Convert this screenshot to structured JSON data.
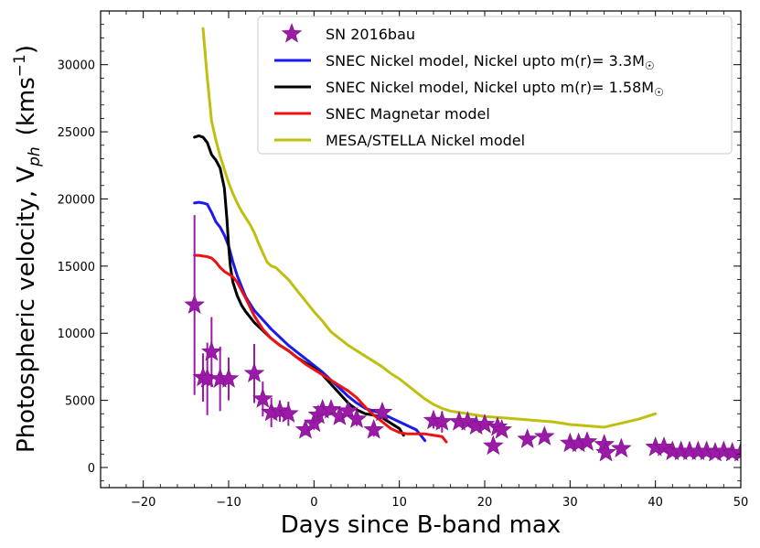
{
  "chart_data": {
    "type": "line",
    "xlabel": "Days since B-band max",
    "ylabel_main": "Photospheric velocity, V",
    "ylabel_sub": "ph",
    "ylabel_units": "(kms",
    "ylabel_units_sup": "−1",
    "ylabel_units_close": ")",
    "xlim": [
      -25,
      50
    ],
    "ylim": [
      -1500,
      34000
    ],
    "xticks": [
      -20,
      -10,
      0,
      10,
      20,
      30,
      40,
      50
    ],
    "xtick_labels": [
      "−20",
      "−10",
      "0",
      "10",
      "20",
      "30",
      "40",
      "50"
    ],
    "yticks": [
      0,
      5000,
      10000,
      15000,
      20000,
      25000,
      30000
    ],
    "ytick_labels": [
      "0",
      "5000",
      "10000",
      "15000",
      "20000",
      "25000",
      "30000"
    ],
    "legend_position": "top-right",
    "legend": [
      {
        "label": "SN 2016bau",
        "kind": "star",
        "color": "#9b1aa8"
      },
      {
        "label": "SNEC Nickel model, Nickel upto m(r)= 3.3M",
        "sub": "☉",
        "kind": "line",
        "color": "#1a1aee"
      },
      {
        "label": "SNEC Nickel model, Nickel upto m(r)= 1.58M",
        "sub": "☉",
        "kind": "line",
        "color": "#000000"
      },
      {
        "label": "SNEC Magnetar model",
        "kind": "line",
        "color": "#ee1111"
      },
      {
        "label": "MESA/STELLA Nickel model",
        "kind": "line",
        "color": "#bfbf10"
      }
    ],
    "series": [
      {
        "name": "SN 2016bau",
        "kind": "scatter",
        "color": "#9b1aa8",
        "points": [
          [
            -14.0,
            12100,
            6700
          ],
          [
            -13.0,
            6700,
            1800
          ],
          [
            -12.5,
            6600,
            2700
          ],
          [
            -12.0,
            8600,
            2600
          ],
          [
            -11.0,
            6600,
            2400
          ],
          [
            -10.0,
            6600,
            1600
          ],
          [
            -7.0,
            7000,
            2200
          ],
          [
            -6.0,
            5100,
            1300
          ],
          [
            -5.0,
            4100,
            1100
          ],
          [
            -4.0,
            4200,
            800
          ],
          [
            -3.0,
            4000,
            900
          ],
          [
            -1.0,
            2800,
            400
          ],
          [
            0.0,
            3300,
            500
          ],
          [
            0.5,
            3900,
            500
          ],
          [
            1.0,
            4300,
            500
          ],
          [
            2.0,
            4300,
            400
          ],
          [
            3.0,
            3800,
            400
          ],
          [
            4.0,
            4200,
            400
          ],
          [
            5.0,
            3600,
            500
          ],
          [
            7.0,
            2800,
            500
          ],
          [
            8.0,
            4100,
            500
          ],
          [
            14.0,
            3500,
            600
          ],
          [
            15.0,
            3400,
            800
          ],
          [
            17.0,
            3400,
            300
          ],
          [
            18.0,
            3400,
            300
          ],
          [
            19.0,
            3100,
            300
          ],
          [
            20.0,
            3200,
            300
          ],
          [
            21.0,
            1600,
            300
          ],
          [
            21.5,
            3000,
            300
          ],
          [
            22.0,
            2800,
            300
          ],
          [
            25.0,
            2100,
            300
          ],
          [
            27.0,
            2300,
            300
          ],
          [
            30.0,
            1800,
            300
          ],
          [
            31.0,
            1800,
            300
          ],
          [
            32.0,
            1900,
            300
          ],
          [
            34.0,
            1700,
            300
          ],
          [
            34.2,
            1100,
            300
          ],
          [
            36.0,
            1400,
            300
          ],
          [
            40.0,
            1500,
            300
          ],
          [
            41.0,
            1500,
            300
          ],
          [
            42.0,
            1200,
            300
          ],
          [
            43.0,
            1200,
            300
          ],
          [
            44.0,
            1200,
            300
          ],
          [
            45.0,
            1200,
            300
          ],
          [
            46.0,
            1200,
            300
          ],
          [
            47.0,
            1100,
            300
          ],
          [
            48.0,
            1200,
            300
          ],
          [
            49.0,
            1100,
            300
          ],
          [
            50.0,
            1100,
            300
          ]
        ]
      },
      {
        "name": "SNEC Nickel model, Nickel upto m(r)= 3.3M☉",
        "kind": "line",
        "color": "#1a1aee",
        "x": [
          -14,
          -13.5,
          -13,
          -12.5,
          -12,
          -11.5,
          -11,
          -10.5,
          -10,
          -9.5,
          -9,
          -8.5,
          -8,
          -7,
          -6,
          -5,
          -4,
          -3,
          -2,
          -1,
          0,
          1,
          2,
          3,
          4,
          5,
          6,
          7,
          8,
          9,
          10,
          11,
          12,
          13
        ],
        "y": [
          19700,
          19750,
          19700,
          19600,
          19000,
          18300,
          17900,
          17300,
          16500,
          15300,
          14300,
          13500,
          12700,
          11700,
          11000,
          10300,
          9700,
          9100,
          8600,
          8100,
          7600,
          7100,
          6500,
          5900,
          5300,
          4800,
          4400,
          4200,
          4000,
          3700,
          3400,
          3100,
          2800,
          2000
        ]
      },
      {
        "name": "SNEC Nickel model, Nickel upto m(r)= 1.58M☉",
        "kind": "line",
        "color": "#000000",
        "x": [
          -14,
          -13.5,
          -13,
          -12.5,
          -12,
          -11.5,
          -11,
          -10.5,
          -10.2,
          -10,
          -9.8,
          -9.5,
          -9,
          -8.5,
          -8,
          -7,
          -6,
          -5,
          -4,
          -3,
          -2,
          -1,
          0,
          1,
          2,
          3,
          4,
          5,
          6,
          7,
          8,
          9,
          10,
          10.5
        ],
        "y": [
          24600,
          24700,
          24600,
          24200,
          23300,
          22900,
          22300,
          20800,
          18500,
          16500,
          15000,
          13800,
          12800,
          12100,
          11600,
          10800,
          10200,
          9600,
          9100,
          8700,
          8200,
          7800,
          7400,
          6900,
          6200,
          5500,
          4800,
          4300,
          4000,
          3900,
          3700,
          3300,
          2900,
          2400
        ]
      },
      {
        "name": "SNEC Magnetar model",
        "kind": "line",
        "color": "#ee1111",
        "x": [
          -14,
          -13.5,
          -13,
          -12.5,
          -12,
          -11.5,
          -11,
          -10.5,
          -10,
          -9.5,
          -9,
          -8.5,
          -8,
          -7,
          -6,
          -5,
          -4,
          -3,
          -2,
          -1,
          0,
          1,
          2,
          3,
          4,
          5,
          6,
          7,
          8,
          9,
          10,
          11,
          12,
          13,
          14,
          15,
          15.5
        ],
        "y": [
          15800,
          15800,
          15750,
          15700,
          15600,
          15300,
          14900,
          14600,
          14400,
          14200,
          13800,
          13200,
          12600,
          11300,
          10300,
          9600,
          9100,
          8700,
          8200,
          7700,
          7300,
          6900,
          6500,
          6100,
          5700,
          5200,
          4500,
          3900,
          3400,
          2900,
          2600,
          2500,
          2500,
          2500,
          2400,
          2300,
          1900
        ]
      },
      {
        "name": "MESA/STELLA Nickel model",
        "kind": "line",
        "color": "#bfbf10",
        "x": [
          -13,
          -12.5,
          -12,
          -11.5,
          -11,
          -10.5,
          -10,
          -9.5,
          -9,
          -8.5,
          -8,
          -7.5,
          -7,
          -6.5,
          -6,
          -5.5,
          -5,
          -4.5,
          -4,
          -3.5,
          -3,
          -2,
          -1,
          0,
          1,
          2,
          3,
          4,
          5,
          6,
          7,
          8,
          9,
          10,
          11,
          12,
          13,
          14,
          15,
          16,
          18,
          20,
          22,
          24,
          26,
          28,
          30,
          32,
          34,
          36,
          38,
          40
        ],
        "y": [
          32700,
          29000,
          25800,
          24400,
          23200,
          22200,
          21200,
          20400,
          19700,
          19100,
          18600,
          18100,
          17500,
          16700,
          16000,
          15300,
          15000,
          14900,
          14600,
          14300,
          14000,
          13200,
          12400,
          11600,
          10900,
          10100,
          9600,
          9100,
          8700,
          8300,
          7900,
          7500,
          7000,
          6600,
          6100,
          5600,
          5100,
          4700,
          4400,
          4200,
          4000,
          3800,
          3700,
          3600,
          3500,
          3400,
          3200,
          3100,
          3000,
          3300,
          3600,
          4000
        ]
      }
    ]
  }
}
